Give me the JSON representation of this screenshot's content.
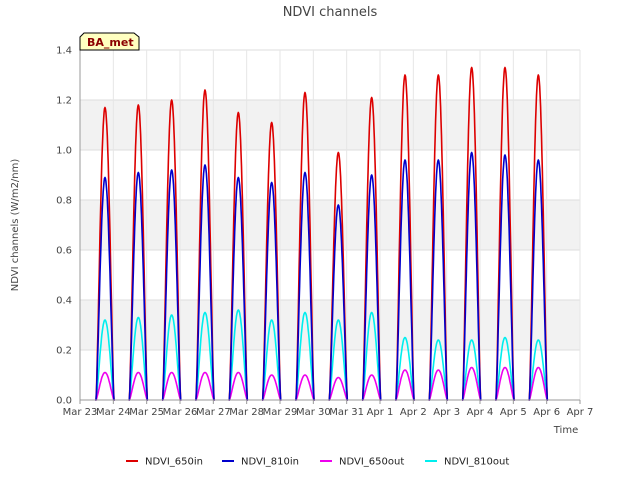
{
  "chart_data": {
    "type": "line",
    "title": "NDVI channels",
    "xlabel": "Time",
    "ylabel": "NDVI channels (W/m2/nm)",
    "badge": "BA_met",
    "ylim": [
      0,
      1.4
    ],
    "yticks": [
      0.0,
      0.2,
      0.4,
      0.6,
      0.8,
      1.0,
      1.2,
      1.4
    ],
    "ytick_labels": [
      "0.0",
      "0.2",
      "0.4",
      "0.6",
      "0.8",
      "1.0",
      "1.2",
      "1.4"
    ],
    "xlim": [
      0,
      15
    ],
    "xticks": [
      0,
      1,
      2,
      3,
      4,
      5,
      6,
      7,
      8,
      9,
      10,
      11,
      12,
      13,
      14,
      15
    ],
    "xtick_labels": [
      "Mar 23",
      "Mar 24",
      "Mar 25",
      "Mar 26",
      "Mar 27",
      "Mar 28",
      "Mar 29",
      "Mar 30",
      "Mar 31",
      "Apr 1",
      "Apr 2",
      "Apr 3",
      "Apr 4",
      "Apr 5",
      "Apr 6",
      "Apr 7"
    ],
    "grid": true,
    "legend_position": "bottom",
    "day_centers": [
      0.75,
      1.75,
      2.75,
      3.75,
      4.75,
      5.75,
      6.75,
      7.75,
      8.75,
      9.75,
      10.75,
      11.75,
      12.75,
      13.75
    ],
    "series": [
      {
        "name": "NDVI_650in",
        "color": "#dd0000",
        "peaks": [
          1.17,
          1.18,
          1.2,
          1.24,
          1.15,
          1.11,
          1.23,
          0.99,
          1.21,
          1.3,
          1.3,
          1.33,
          1.33,
          1.3
        ]
      },
      {
        "name": "NDVI_810in",
        "color": "#0000cc",
        "peaks": [
          0.89,
          0.91,
          0.92,
          0.94,
          0.89,
          0.87,
          0.91,
          0.78,
          0.9,
          0.96,
          0.96,
          0.99,
          0.98,
          0.96
        ]
      },
      {
        "name": "NDVI_650out",
        "color": "#ee00ee",
        "peaks": [
          0.11,
          0.11,
          0.11,
          0.11,
          0.11,
          0.1,
          0.1,
          0.09,
          0.1,
          0.12,
          0.12,
          0.13,
          0.13,
          0.13
        ]
      },
      {
        "name": "NDVI_810out",
        "color": "#00eeee",
        "peaks": [
          0.32,
          0.33,
          0.34,
          0.35,
          0.36,
          0.32,
          0.35,
          0.32,
          0.35,
          0.25,
          0.24,
          0.24,
          0.25,
          0.24
        ]
      }
    ]
  }
}
